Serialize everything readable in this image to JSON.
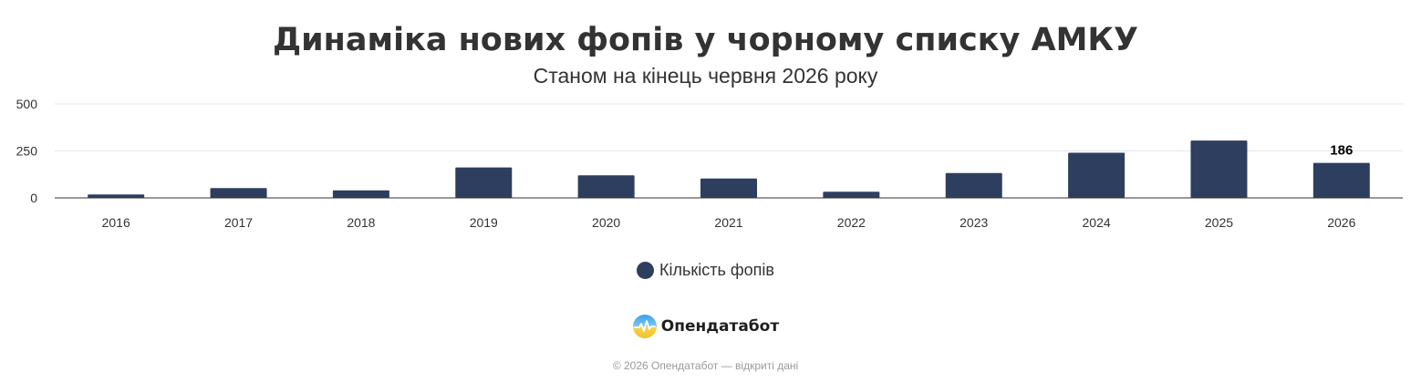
{
  "chart_data": {
    "type": "bar",
    "title": "Динаміка нових фопів у чорному списку АМКУ",
    "subtitle": "Станом на кінець червня 2026 року",
    "categories": [
      "2016",
      "2017",
      "2018",
      "2019",
      "2020",
      "2021",
      "2022",
      "2023",
      "2024",
      "2025",
      "2026"
    ],
    "series": [
      {
        "name": "Кількість фопів",
        "values": [
          18,
          52,
          40,
          162,
          120,
          103,
          33,
          132,
          240,
          305,
          186
        ],
        "data_labels": [
          "",
          "",
          "",
          "",
          "",
          "",
          "",
          "",
          "",
          "",
          "186"
        ]
      }
    ],
    "y_ticks": [
      "0",
      "250",
      "500"
    ],
    "ylim": [
      0,
      500
    ],
    "grid": true,
    "legend_position": "bottom-center"
  },
  "colors": {
    "bar": "#2e3e5e",
    "grid": "#e6e6e6",
    "axis": "#333333",
    "text": "#333333"
  },
  "branding": {
    "logo_icon": "opendatabot-logo-icon",
    "logo_text": "Опендатабот",
    "footer": "© 2026 Опендатабот — відкриті дані"
  }
}
